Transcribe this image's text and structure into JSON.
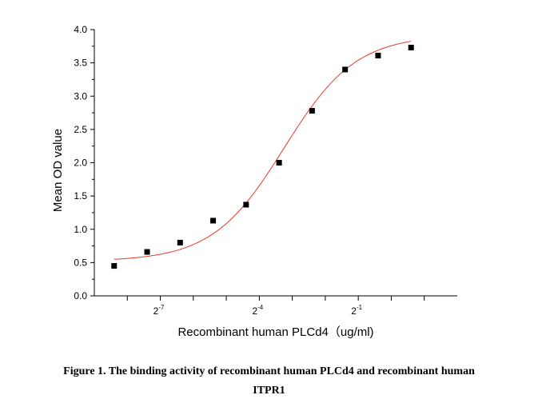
{
  "chart_data": {
    "type": "scatter",
    "xlabel": "Recombinant human PLCd4（ug/ml)",
    "ylabel": "Mean OD value",
    "x_scale": "log2",
    "xlim": [
      -9,
      2
    ],
    "ylim": [
      0,
      4
    ],
    "y_ticks": [
      "0.0",
      "0.5",
      "1.0",
      "1.5",
      "2.0",
      "2.5",
      "3.0",
      "3.5",
      "4.0"
    ],
    "y_tick_values": [
      0,
      0.5,
      1,
      1.5,
      2,
      2.5,
      3,
      3.5,
      4
    ],
    "x_major_ticks": [
      -8,
      -7,
      -6,
      -5,
      -4,
      -3,
      -2,
      -1,
      0,
      1
    ],
    "x_labels": [
      {
        "base": "2",
        "exp": "-7",
        "value": -7
      },
      {
        "base": "2",
        "exp": "-4",
        "value": -4
      },
      {
        "base": "2",
        "exp": "-1",
        "value": -1
      }
    ],
    "points": [
      {
        "x": -8.4,
        "y": 0.45
      },
      {
        "x": -7.4,
        "y": 0.66
      },
      {
        "x": -6.4,
        "y": 0.8
      },
      {
        "x": -5.4,
        "y": 1.13
      },
      {
        "x": -4.4,
        "y": 1.37
      },
      {
        "x": -3.4,
        "y": 2.0
      },
      {
        "x": -2.4,
        "y": 2.78
      },
      {
        "x": -1.4,
        "y": 3.4
      },
      {
        "x": -0.4,
        "y": 3.61
      },
      {
        "x": 0.6,
        "y": 3.73
      }
    ],
    "fit_curve": {
      "bottom": 0.52,
      "top": 3.92,
      "x50": -3.25,
      "slope": 0.92,
      "x_range": [
        -8.4,
        0.6
      ]
    },
    "marker_color": "#000000",
    "curve_color": "#e83a2c",
    "grid": false
  },
  "caption": {
    "line1": "Figure 1. The binding activity of recombinant human PLCd4 and recombinant human",
    "line2": "ITPR1"
  }
}
